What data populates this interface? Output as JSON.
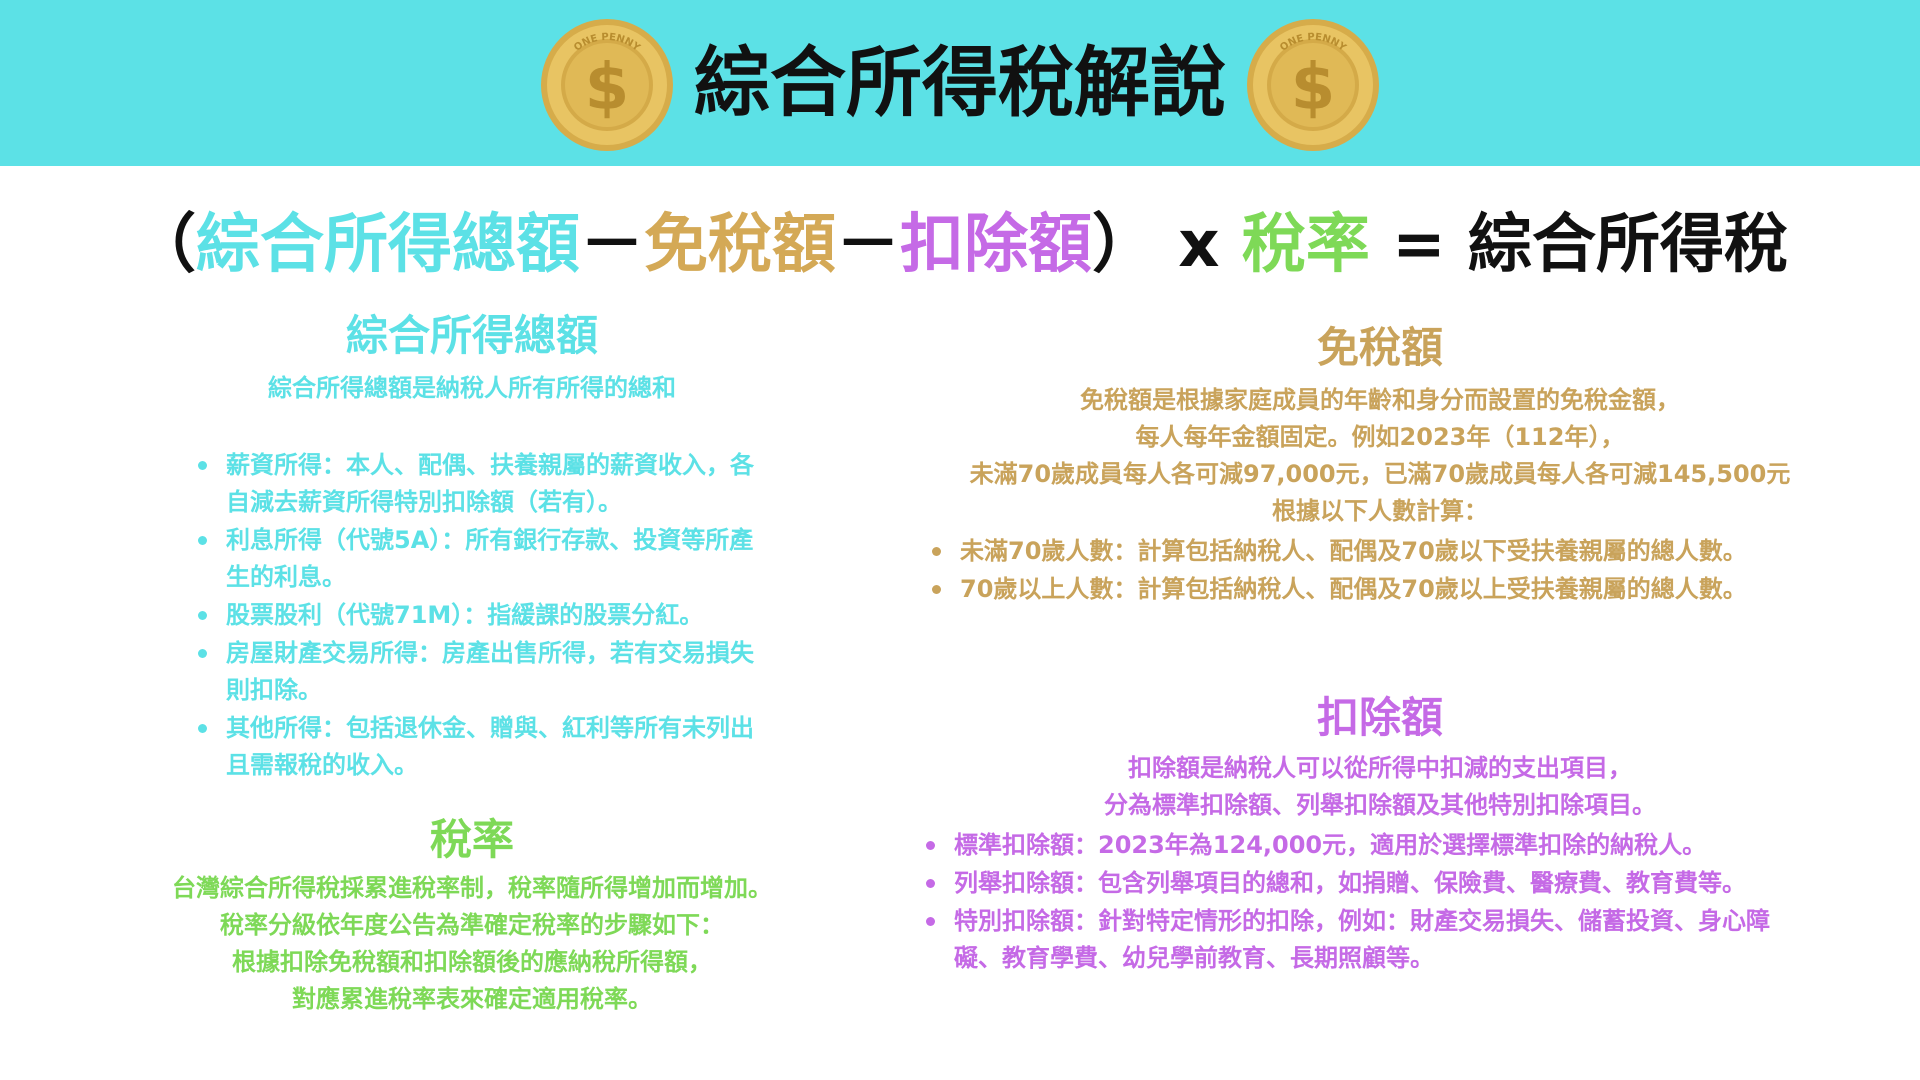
{
  "header": {
    "title": "綜合所得稅解說",
    "coin_text": "ONE PENNY",
    "coin_symbol": "$"
  },
  "formula": {
    "open_paren": "（",
    "term1": "綜合所得總額",
    "minus1": "－",
    "term2": "免稅額",
    "minus2": "－",
    "term3": "扣除額",
    "close_paren": "）",
    "times": "x",
    "term4": "稅率",
    "equals": "=",
    "result": "綜合所得稅"
  },
  "gross_income": {
    "title": "綜合所得總額",
    "description": "綜合所得總額是納稅人所有所得的總和",
    "items": [
      "薪資所得：本人、配偶、扶養親屬的薪資收入，各自減去薪資所得特別扣除額（若有）。",
      "利息所得（代號5A）：所有銀行存款、投資等所產生的利息。",
      "股票股利（代號71M）：指緩課的股票分紅。",
      "房屋財產交易所得：房產出售所得，若有交易損失則扣除。",
      "其他所得：包括退休金、贈與、紅利等所有未列出且需報稅的收入。"
    ]
  },
  "tax_rate": {
    "title": "稅率",
    "lines": [
      "台灣綜合所得稅採累進稅率制，稅率隨所得增加而增加。",
      "稅率分級依年度公告為準確定稅率的步驟如下：",
      "根據扣除免稅額和扣除額後的應納稅所得額，",
      "對應累進稅率表來確定適用稅率。"
    ]
  },
  "exemption": {
    "title": "免稅額",
    "lines": [
      "免稅額是根據家庭成員的年齡和身分而設置的免稅金額，",
      "每人每年金額固定。例如2023年（112年），",
      "未滿70歲成員每人各可減97,000元，已滿70歲成員每人各可減145,500元",
      "根據以下人數計算："
    ],
    "items": [
      "未滿70歲人數：計算包括納稅人、配偶及70歲以下受扶養親屬的總人數。",
      "70歲以上人數：計算包括納稅人、配偶及70歲以上受扶養親屬的總人數。"
    ]
  },
  "deduction": {
    "title": "扣除額",
    "lines": [
      "扣除額是納稅人可以從所得中扣減的支出項目，",
      "分為標準扣除額、列舉扣除額及其他特別扣除項目。"
    ],
    "items": [
      "標準扣除額：2023年為124,000元，適用於選擇標準扣除的納稅人。",
      "列舉扣除額：包含列舉項目的總和，如捐贈、保險費、醫療費、教育費等。",
      "特別扣除額：針對特定情形的扣除，例如：財產交易損失、儲蓄投資、身心障礙、教育學費、幼兒學前教育、長期照顧等。"
    ]
  },
  "colors": {
    "banner": "#5ce1e6",
    "gross_income": "#5ce1e6",
    "exemption": "#c9a35b",
    "deduction": "#c56ae6",
    "tax_rate": "#7ed957",
    "coin_gold": "#e2bd5a"
  }
}
